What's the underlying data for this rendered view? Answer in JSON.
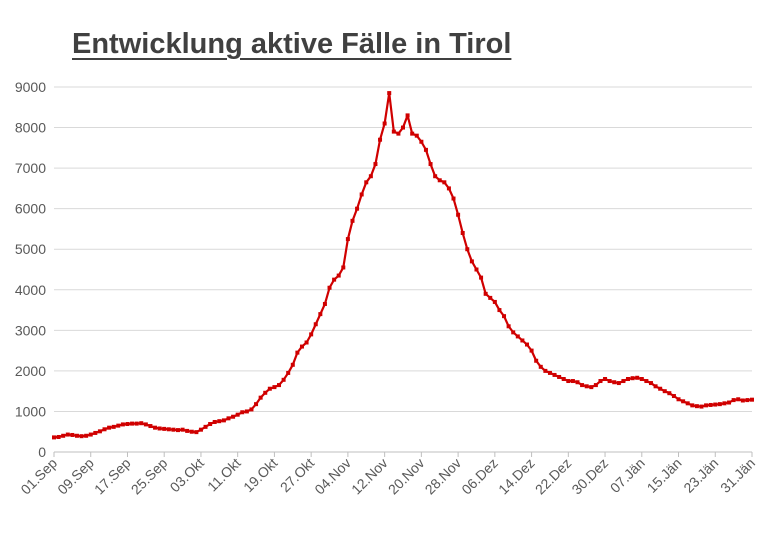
{
  "chart_data": {
    "type": "line",
    "title": "Entwicklung aktive Fälle in Tirol",
    "xlabel": "",
    "ylabel": "",
    "ylim": [
      0,
      9000
    ],
    "yticks": [
      0,
      1000,
      2000,
      3000,
      4000,
      5000,
      6000,
      7000,
      8000,
      9000
    ],
    "xticks": [
      {
        "label": "01.Sep",
        "day": 0
      },
      {
        "label": "09.Sep",
        "day": 8
      },
      {
        "label": "17.Sep",
        "day": 16
      },
      {
        "label": "25.Sep",
        "day": 24
      },
      {
        "label": "03.Okt",
        "day": 32
      },
      {
        "label": "11.Okt",
        "day": 40
      },
      {
        "label": "19.Okt",
        "day": 48
      },
      {
        "label": "27.Okt",
        "day": 56
      },
      {
        "label": "04.Nov",
        "day": 64
      },
      {
        "label": "12.Nov",
        "day": 72
      },
      {
        "label": "20.Nov",
        "day": 80
      },
      {
        "label": "28.Nov",
        "day": 88
      },
      {
        "label": "06.Dez",
        "day": 96
      },
      {
        "label": "14.Dez",
        "day": 104
      },
      {
        "label": "22.Dez",
        "day": 112
      },
      {
        "label": "30.Dez",
        "day": 120
      },
      {
        "label": "07.Jän",
        "day": 128
      },
      {
        "label": "15.Jän",
        "day": 136
      },
      {
        "label": "23.Jän",
        "day": 144
      },
      {
        "label": "31.Jän",
        "day": 152
      }
    ],
    "grid": true,
    "legend": "none",
    "line_color": "#d00000",
    "grid_color": "#d9d9d9",
    "label_color": "#595959",
    "series": [
      {
        "values": [
          360,
          370,
          400,
          430,
          420,
          400,
          390,
          400,
          430,
          470,
          510,
          560,
          600,
          620,
          650,
          680,
          690,
          700,
          700,
          710,
          680,
          640,
          600,
          580,
          570,
          560,
          550,
          540,
          550,
          520,
          500,
          490,
          550,
          620,
          690,
          740,
          760,
          780,
          830,
          870,
          920,
          980,
          1000,
          1050,
          1180,
          1340,
          1460,
          1560,
          1600,
          1650,
          1780,
          1950,
          2150,
          2450,
          2600,
          2700,
          2900,
          3150,
          3400,
          3650,
          4050,
          4250,
          4350,
          4550,
          5250,
          5700,
          6000,
          6350,
          6650,
          6800,
          7100,
          7700,
          8100,
          8850,
          7900,
          7850,
          8000,
          8300,
          7850,
          7800,
          7650,
          7450,
          7100,
          6800,
          6700,
          6650,
          6500,
          6250,
          5850,
          5400,
          5000,
          4700,
          4500,
          4300,
          3900,
          3800,
          3700,
          3500,
          3350,
          3100,
          2950,
          2850,
          2750,
          2650,
          2500,
          2250,
          2100,
          2000,
          1950,
          1900,
          1850,
          1800,
          1750,
          1750,
          1720,
          1650,
          1620,
          1600,
          1650,
          1750,
          1800,
          1750,
          1720,
          1700,
          1750,
          1800,
          1820,
          1830,
          1800,
          1750,
          1700,
          1620,
          1560,
          1500,
          1450,
          1380,
          1300,
          1250,
          1200,
          1150,
          1130,
          1120,
          1150,
          1160,
          1170,
          1180,
          1200,
          1220,
          1280,
          1300,
          1270,
          1280,
          1290
        ]
      }
    ]
  }
}
